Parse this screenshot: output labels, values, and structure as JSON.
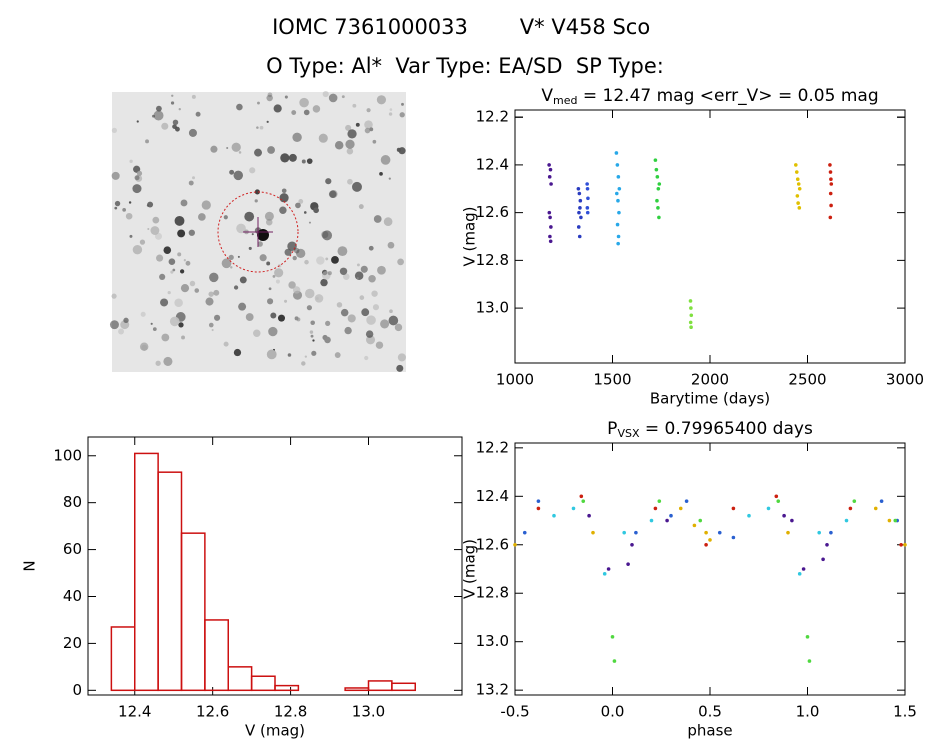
{
  "header": {
    "id": "IOMC 7361000033",
    "star": "V* V458 Sco",
    "types": "O Type: Al*  Var Type: EA/SD  SP Type:"
  },
  "chart_data": [
    {
      "type": "scatter",
      "title": {
        "symbol": "V",
        "subscript": "med",
        "text": " = 12.47 mag <err_V> = 0.05 mag"
      },
      "x_label": "Barytime (days)",
      "y_label": "V (mag)",
      "xlim": [
        1000,
        3000
      ],
      "xticks": [
        1000,
        1500,
        2000,
        2500,
        3000
      ],
      "ylim": [
        12.17,
        13.23
      ],
      "y_inverted": true,
      "yticks": [
        12.2,
        12.4,
        12.6,
        12.8,
        {
          "value": 13.0,
          "label": "13.0"
        },
        12.2,
        12.2
      ],
      "series": [
        {
          "color": "#4a1890",
          "x": [
            1175,
            1178,
            1182,
            1185,
            1176,
            1180,
            1184,
            1179,
            1183
          ],
          "values": [
            12.4,
            12.45,
            12.42,
            12.48,
            12.6,
            12.62,
            12.66,
            12.7,
            12.72
          ]
        },
        {
          "color": "#2a3cc0",
          "x": [
            1325,
            1330,
            1335,
            1328,
            1333,
            1338,
            1327,
            1332
          ],
          "values": [
            12.5,
            12.52,
            12.55,
            12.6,
            12.58,
            12.62,
            12.66,
            12.7
          ]
        },
        {
          "color": "#3050d8",
          "x": [
            1370,
            1372,
            1374,
            1371,
            1373
          ],
          "values": [
            12.48,
            12.5,
            12.54,
            12.58,
            12.6
          ]
        },
        {
          "color": "#28a8e8",
          "x": [
            1520,
            1525,
            1530,
            1535,
            1522,
            1528,
            1533,
            1526,
            1531,
            1529
          ],
          "values": [
            12.35,
            12.4,
            12.45,
            12.5,
            12.52,
            12.55,
            12.6,
            12.65,
            12.7,
            12.73
          ]
        },
        {
          "color": "#30d040",
          "x": [
            1720,
            1725,
            1730,
            1735,
            1740,
            1728,
            1733,
            1738
          ],
          "values": [
            12.38,
            12.42,
            12.45,
            12.5,
            12.48,
            12.55,
            12.58,
            12.62
          ]
        },
        {
          "color": "#80e040",
          "x": [
            1900,
            1902,
            1904,
            1901,
            1903
          ],
          "values": [
            12.97,
            13.0,
            13.03,
            13.06,
            13.08
          ]
        },
        {
          "color": "#e0c000",
          "x": [
            2440,
            2445,
            2450,
            2455,
            2460,
            2448,
            2452,
            2458
          ],
          "values": [
            12.4,
            12.43,
            12.46,
            12.48,
            12.5,
            12.53,
            12.56,
            12.58
          ]
        },
        {
          "color": "#cc2010",
          "x": [
            2615,
            2618,
            2620,
            2622,
            2619,
            2621,
            2617
          ],
          "values": [
            12.4,
            12.43,
            12.46,
            12.48,
            12.52,
            12.57,
            12.62
          ]
        }
      ]
    },
    {
      "type": "histogram",
      "x_label": "V (mag)",
      "y_label": "N",
      "color": "#cc1010",
      "xlim": [
        12.28,
        13.24
      ],
      "xticks": [
        12.4,
        12.6,
        12.8,
        {
          "value": 13.0,
          "label": "13.0"
        }
      ],
      "ylim": [
        -2,
        108
      ],
      "yticks": [
        0,
        20,
        40,
        60,
        80,
        100
      ],
      "bins": [
        12.34,
        12.4,
        12.46,
        12.52,
        12.58,
        12.64,
        12.7,
        12.76,
        12.82,
        12.88,
        12.94,
        13.0,
        13.06,
        13.12
      ],
      "counts": [
        27,
        101,
        93,
        67,
        30,
        10,
        6,
        2,
        0,
        0,
        1,
        4,
        3
      ]
    },
    {
      "type": "scatter",
      "title": {
        "symbol": "P",
        "subscript": "VSX",
        "text": " = 0.79965400 days"
      },
      "x_label": "phase",
      "y_label": "V (mag)",
      "xlim": [
        -0.5,
        1.5
      ],
      "xticks": [
        -0.5,
        {
          "value": 0.0,
          "label": "0.0"
        },
        0.5,
        {
          "value": 1.0,
          "label": "1.0"
        },
        1.5
      ],
      "ylim": [
        12.18,
        13.22
      ],
      "y_inverted": true,
      "yticks": [
        12.2,
        12.4,
        12.6,
        12.8,
        {
          "value": 13.0,
          "label": "13.0"
        },
        13.2
      ],
      "series": [
        {
          "color": "#4a1890",
          "x": [
            -0.02,
            0.08,
            0.1,
            0.28,
            0.98,
            1.08,
            1.1,
            -0.12,
            0.88,
            0.92
          ],
          "values": [
            12.7,
            12.68,
            12.6,
            12.5,
            12.7,
            12.66,
            12.6,
            12.48,
            12.48,
            12.5
          ]
        },
        {
          "color": "#2a60d0",
          "x": [
            0.12,
            0.38,
            0.62,
            -0.38,
            1.12,
            1.38,
            -0.45,
            0.55,
            1.46,
            0.3
          ],
          "values": [
            12.55,
            12.42,
            12.57,
            12.42,
            12.55,
            12.42,
            12.55,
            12.55,
            12.5,
            12.48
          ]
        },
        {
          "color": "#30c8e0",
          "x": [
            -0.04,
            0.96,
            -0.2,
            0.8,
            0.2,
            1.2,
            0.7,
            -0.3,
            0.06,
            1.06
          ],
          "values": [
            12.72,
            12.72,
            12.45,
            12.45,
            12.5,
            12.5,
            12.48,
            12.48,
            12.55,
            12.55
          ]
        },
        {
          "color": "#50d840",
          "x": [
            0.0,
            0.01,
            1.0,
            1.01,
            0.24,
            1.24,
            -0.15,
            0.85,
            0.45,
            1.45
          ],
          "values": [
            12.98,
            13.08,
            12.98,
            13.08,
            12.42,
            12.42,
            12.42,
            12.42,
            12.5,
            12.5
          ]
        },
        {
          "color": "#e0b000",
          "x": [
            -0.5,
            0.5,
            1.5,
            0.35,
            1.35,
            0.42,
            1.42,
            0.48,
            -0.1,
            0.9
          ],
          "values": [
            12.6,
            12.58,
            12.6,
            12.45,
            12.45,
            12.52,
            12.5,
            12.55,
            12.55,
            12.55
          ]
        },
        {
          "color": "#cc2010",
          "x": [
            -0.38,
            0.62,
            0.48,
            1.48,
            0.22,
            1.22,
            -0.16,
            0.84
          ],
          "values": [
            12.45,
            12.45,
            12.6,
            12.6,
            12.45,
            12.45,
            12.4,
            12.4
          ]
        }
      ]
    }
  ]
}
